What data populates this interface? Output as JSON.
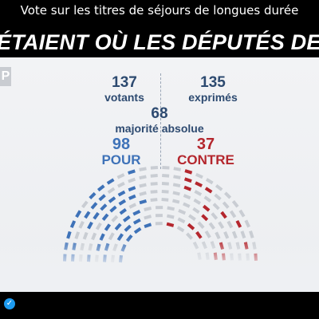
{
  "caption": "Vote sur les titres de séjours de longues durée",
  "headline": "ÉTAIENT OÙ LES DÉPUTÉS DE DROITE",
  "logo_letter": "P",
  "votants": {
    "value": "137",
    "label": "votants"
  },
  "exprimes": {
    "value": "135",
    "label": "exprimés"
  },
  "majorite": {
    "value": "68",
    "label": "majorité absolue"
  },
  "pour": {
    "value": "98",
    "label": "POUR"
  },
  "contre": {
    "value": "37",
    "label": "CONTRE"
  },
  "colors": {
    "pour": "#3e72b8",
    "contre": "#b4262d",
    "empty": "#c9cdd3",
    "text": "#2d4a70",
    "verified": "#1d9bf0"
  },
  "icons": {
    "verified": "verified-badge-icon"
  }
}
